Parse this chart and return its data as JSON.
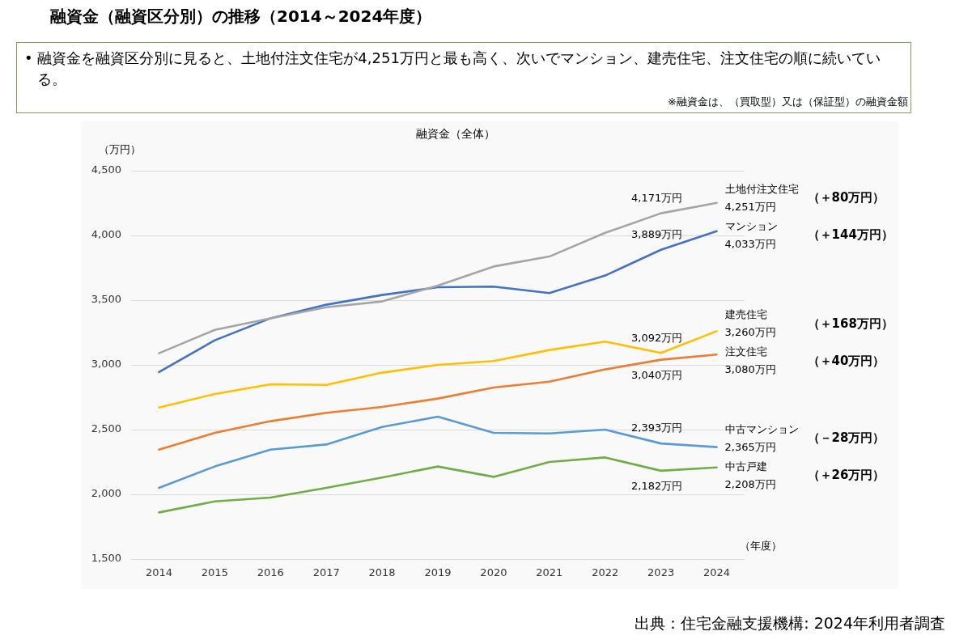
{
  "chart_data": {
    "type": "line",
    "title": "融資金（融資区分別）の推移（2014～2024年度）",
    "subtitle": "• 融資金を融資区分別に見ると、土地付注文住宅が4,251万円と最も高く、次いでマンション、建売住宅、注文住宅の順に続いている。",
    "xlabel": "（年度）",
    "ylabel": "（万円）",
    "categories": [
      "2014",
      "2015",
      "2016",
      "2017",
      "2018",
      "2019",
      "2020",
      "2021",
      "2022",
      "2023",
      "2024"
    ],
    "series": [
      {
        "name": "土地付注文住宅",
        "color": "#a5a5a5",
        "values": [
          3090,
          3270,
          3360,
          3445,
          3490,
          3612,
          3760,
          3837,
          4020,
          4171,
          4251
        ],
        "value_labels": [
          null,
          null,
          null,
          null,
          null,
          null,
          null,
          null,
          null,
          "4,171万円",
          "4,251万円"
        ]
      },
      {
        "name": "マンション",
        "color": "#4472c4",
        "values": [
          2945,
          3190,
          3360,
          3465,
          3540,
          3600,
          3605,
          3555,
          3690,
          3889,
          4033
        ],
        "value_labels": [
          null,
          null,
          null,
          null,
          null,
          null,
          null,
          null,
          null,
          "3,889万円",
          "4,033万円"
        ]
      },
      {
        "name": "建売住宅",
        "color": "#ffc000",
        "values": [
          2670,
          2775,
          2850,
          2845,
          2940,
          3000,
          3030,
          3115,
          3180,
          3092,
          3260
        ],
        "value_labels": [
          null,
          null,
          null,
          null,
          null,
          null,
          null,
          null,
          null,
          "3,092万円",
          "3,260万円"
        ]
      },
      {
        "name": "注文住宅",
        "color": "#ed7d31",
        "values": [
          2345,
          2475,
          2565,
          2630,
          2675,
          2740,
          2825,
          2870,
          2965,
          3040,
          3080
        ],
        "value_labels": [
          null,
          null,
          null,
          null,
          null,
          null,
          null,
          null,
          null,
          "3,040万円",
          "3,080万円"
        ]
      },
      {
        "name": "中古マンション",
        "color": "#5b9bd5",
        "values": [
          2050,
          2215,
          2345,
          2385,
          2520,
          2600,
          2475,
          2470,
          2500,
          2393,
          2365
        ],
        "value_labels": [
          null,
          null,
          null,
          null,
          null,
          null,
          null,
          null,
          null,
          "2,393万円",
          "2,365万円"
        ]
      },
      {
        "name": "中古戸建",
        "color": "#70ad47",
        "values": [
          1860,
          1945,
          1975,
          2050,
          2130,
          2215,
          2135,
          2250,
          2285,
          2182,
          2208
        ],
        "value_labels": [
          null,
          null,
          null,
          null,
          null,
          null,
          null,
          null,
          null,
          "2,182万円",
          "2,208万円"
        ]
      }
    ],
    "ylim": [
      1500,
      4500
    ],
    "yticks": [
      {
        "value": 1500,
        "label": "1,500"
      },
      {
        "value": 2000,
        "label": "2,000"
      },
      {
        "value": 2500,
        "label": "2,500"
      },
      {
        "value": 3000,
        "label": "3,000"
      },
      {
        "value": 3500,
        "label": "3,500"
      },
      {
        "value": 4000,
        "label": "4,000"
      },
      {
        "value": 4500,
        "label": "4,500"
      }
    ],
    "grid": "y",
    "marker": "none",
    "line_style": "solid",
    "annotations": [
      "融資金（全体）",
      "※融資金は、（買取型）又は（保証型）の融資金額",
      "出典：住宅金融支援機構: 2024年利用者調査",
      "（＋80万円）",
      "（＋144万円）",
      "（＋168万円）",
      "（＋40万円）",
      "（－28万円）",
      "（＋26万円）"
    ]
  }
}
